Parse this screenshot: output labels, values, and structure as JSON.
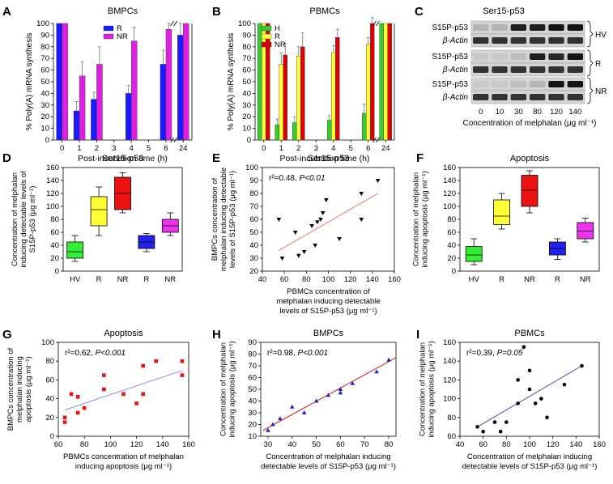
{
  "chart_data": [
    {
      "id": "A",
      "panel_letter": "A",
      "type": "bar",
      "title": "BMPCs",
      "xlabel": "Post-incubation time (h)",
      "ylabel": "% Poly(A) mRNA synthesis",
      "categories": [
        "0",
        "1",
        "2",
        "3",
        "4",
        "5",
        "6",
        "24"
      ],
      "yticks": [
        "0",
        "10",
        "20",
        "30",
        "40",
        "50",
        "60",
        "70",
        "80",
        "90",
        "100"
      ],
      "ylim": [
        0,
        100
      ],
      "series": [
        {
          "name": "R",
          "color": "#1a1aff",
          "values": [
            100,
            25,
            35,
            null,
            40,
            null,
            65,
            90
          ],
          "errors": [
            0,
            8,
            6,
            0,
            7,
            0,
            12,
            10
          ]
        },
        {
          "name": "NR",
          "color": "#e020e0",
          "values": [
            100,
            55,
            65,
            null,
            85,
            null,
            95,
            100
          ],
          "errors": [
            0,
            12,
            15,
            0,
            12,
            0,
            5,
            0
          ]
        }
      ],
      "axis_break_between": [
        "6",
        "24"
      ]
    },
    {
      "id": "B",
      "panel_letter": "B",
      "type": "bar",
      "title": "PBMCs",
      "xlabel": "Post-incubation time (h)",
      "ylabel": "% Poly(A) mRNA synthesis",
      "categories": [
        "0",
        "1",
        "2",
        "3",
        "4",
        "5",
        "6",
        "24"
      ],
      "yticks": [
        "0",
        "10",
        "20",
        "30",
        "40",
        "50",
        "60",
        "70",
        "80",
        "90",
        "100"
      ],
      "ylim": [
        0,
        100
      ],
      "series": [
        {
          "name": "H",
          "color": "#33cc33",
          "values": [
            100,
            13,
            15,
            null,
            17,
            null,
            23,
            100
          ],
          "errors": [
            0,
            5,
            5,
            0,
            4,
            0,
            8,
            0
          ]
        },
        {
          "name": "R",
          "color": "#ffff33",
          "values": [
            100,
            65,
            72,
            null,
            75,
            null,
            82,
            100
          ],
          "errors": [
            0,
            10,
            8,
            0,
            6,
            0,
            6,
            0
          ]
        },
        {
          "name": "NR",
          "color": "#e00000",
          "values": [
            100,
            73,
            80,
            null,
            88,
            null,
            100,
            100
          ],
          "errors": [
            0,
            10,
            12,
            0,
            7,
            0,
            5,
            0
          ]
        }
      ],
      "axis_break_between": [
        "6",
        "24"
      ]
    },
    {
      "id": "C",
      "panel_letter": "C",
      "type": "table",
      "title": "Ser15-p53",
      "xlabel": "Concentration of melphalan (μg ml⁻¹)",
      "lane_labels": [
        "0",
        "10",
        "30",
        "80",
        "120",
        "140"
      ],
      "rows": [
        {
          "label": "S15P-p53",
          "group": "HV",
          "intensity": [
            0.15,
            0.15,
            0.9,
            0.9,
            0.95,
            0.95
          ]
        },
        {
          "label": "β-Actin",
          "group": "HV",
          "intensity": [
            0.8,
            0.8,
            0.8,
            0.8,
            0.8,
            0.8
          ]
        },
        {
          "label": "S15P-p53",
          "group": "R",
          "intensity": [
            0.05,
            0.05,
            0.1,
            0.9,
            0.85,
            0.95
          ]
        },
        {
          "label": "β-Actin",
          "group": "R",
          "intensity": [
            0.8,
            0.8,
            0.8,
            0.8,
            0.8,
            0.8
          ]
        },
        {
          "label": "S15P-p53",
          "group": "NR",
          "intensity": [
            0.05,
            0.05,
            0.1,
            0.15,
            0.95,
            0.95
          ]
        },
        {
          "label": "β-Actin",
          "group": "NR",
          "intensity": [
            0.8,
            0.8,
            0.8,
            0.8,
            0.8,
            0.8
          ]
        }
      ],
      "groups": [
        "HV",
        "R",
        "NR"
      ]
    },
    {
      "id": "D",
      "panel_letter": "D",
      "type": "box",
      "title": "Ser15-p53",
      "ylabel": "Concentration of melphalan inducing detectable levels of S15P-p53 (μg ml⁻¹)",
      "ylabel_lines": [
        "Concentration of melphalan",
        "inducing detectable levels of",
        "S15P-p53 (μg ml⁻¹)"
      ],
      "categories": [
        "HV",
        "R",
        "NR",
        "R",
        "NR"
      ],
      "yticks": [
        "0",
        "20",
        "40",
        "60",
        "80",
        "100",
        "120",
        "140",
        "160"
      ],
      "ylim": [
        0,
        160
      ],
      "boxes": [
        {
          "label": "HV",
          "color": "#33ee33",
          "min": 15,
          "q1": 20,
          "median": 30,
          "q3": 45,
          "max": 55
        },
        {
          "label": "R",
          "color": "#ffff33",
          "min": 55,
          "q1": 70,
          "median": 95,
          "q3": 115,
          "max": 130
        },
        {
          "label": "NR",
          "color": "#ee1111",
          "min": 90,
          "q1": 95,
          "median": 120,
          "q3": 145,
          "max": 152
        },
        {
          "label": "R",
          "color": "#2222ee",
          "min": 30,
          "q1": 35,
          "median": 45,
          "q3": 55,
          "max": 58
        },
        {
          "label": "NR",
          "color": "#ee33ee",
          "min": 55,
          "q1": 60,
          "median": 70,
          "q3": 80,
          "max": 90
        }
      ]
    },
    {
      "id": "E",
      "panel_letter": "E",
      "type": "scatter",
      "title": "Ser15-p53",
      "annotation": {
        "r2": "r²=0.48, ",
        "p": "P<0.01"
      },
      "xlabel": "PBMCs concentration of melphalan inducing detectable levels of S15P-p53 (μg ml⁻¹)",
      "xlabel_lines": [
        "PBMCs concentration of",
        "melphalan inducing detectable",
        "levels of S15P-p53 (μg ml⁻¹)"
      ],
      "ylabel": "BMPCs concentration of melphalan inducing detectable levels of S15P-p53 (μg ml⁻¹)",
      "ylabel_lines": [
        "BMPCs concentration of",
        "melphalan inducing detectable",
        "levels of S15P-p53 (μg ml⁻¹)"
      ],
      "xticks": [
        "40",
        "60",
        "80",
        "100",
        "120",
        "140",
        "160"
      ],
      "yticks": [
        "20",
        "30",
        "40",
        "50",
        "60",
        "70",
        "80",
        "90",
        "100"
      ],
      "xlim": [
        40,
        160
      ],
      "ylim": [
        20,
        100
      ],
      "marker": "triangle-down",
      "marker_color": "#000000",
      "line_color": "#ee7766",
      "points": [
        [
          55,
          60
        ],
        [
          58,
          30
        ],
        [
          70,
          50
        ],
        [
          73,
          32
        ],
        [
          78,
          35
        ],
        [
          85,
          55
        ],
        [
          88,
          40
        ],
        [
          90,
          58
        ],
        [
          93,
          60
        ],
        [
          95,
          65
        ],
        [
          98,
          75
        ],
        [
          110,
          45
        ],
        [
          130,
          80
        ],
        [
          130,
          60
        ],
        [
          145,
          90
        ]
      ],
      "fit": [
        [
          55,
          36
        ],
        [
          145,
          80
        ]
      ]
    },
    {
      "id": "F",
      "panel_letter": "F",
      "type": "box",
      "title": "Apoptosis",
      "ylabel": "Concentration of melphalan inducing apoptosis (μg ml⁻¹)",
      "ylabel_lines": [
        "Concentration of melphalan",
        "inducing apoptosis (μg ml⁻¹)"
      ],
      "categories": [
        "HV",
        "R",
        "NR",
        "R",
        "NR"
      ],
      "yticks": [
        "0",
        "20",
        "40",
        "60",
        "80",
        "100",
        "120",
        "140",
        "160"
      ],
      "ylim": [
        0,
        160
      ],
      "boxes": [
        {
          "label": "HV",
          "color": "#33ee33",
          "min": 10,
          "q1": 15,
          "median": 25,
          "q3": 38,
          "max": 50
        },
        {
          "label": "R",
          "color": "#ffff33",
          "min": 65,
          "q1": 72,
          "median": 85,
          "q3": 110,
          "max": 120
        },
        {
          "label": "NR",
          "color": "#ee1111",
          "min": 90,
          "q1": 100,
          "median": 125,
          "q3": 148,
          "max": 155
        },
        {
          "label": "R",
          "color": "#2222ee",
          "min": 18,
          "q1": 25,
          "median": 35,
          "q3": 45,
          "max": 50
        },
        {
          "label": "NR",
          "color": "#ee33ee",
          "min": 45,
          "q1": 50,
          "median": 62,
          "q3": 75,
          "max": 82
        }
      ]
    },
    {
      "id": "G",
      "panel_letter": "G",
      "type": "scatter",
      "title": "Apoptosis",
      "annotation": {
        "r2": "r²=0.62, ",
        "p": "P<0.001"
      },
      "xlabel": "PBMCs concentration of melphalan inducing apoptosis (μg ml⁻¹)",
      "xlabel_lines": [
        "PBMCs concentration of melphalan",
        "inducing apoptosis (μg ml⁻¹)"
      ],
      "ylabel": "BMPCs concentration of melphalan inducing apoptosis (μg ml⁻¹)",
      "ylabel_lines": [
        "BMPCs concentration of",
        "melphalan inducing",
        "apoptosis (μg ml⁻¹)"
      ],
      "xticks": [
        "60",
        "80",
        "100",
        "120",
        "140",
        "160"
      ],
      "yticks": [
        "0",
        "20",
        "40",
        "60",
        "80",
        "100"
      ],
      "xlim": [
        60,
        160
      ],
      "ylim": [
        0,
        100
      ],
      "marker": "square",
      "marker_color": "#ee1111",
      "line_color": "#8888ee",
      "points": [
        [
          65,
          20
        ],
        [
          65,
          15
        ],
        [
          70,
          45
        ],
        [
          75,
          25
        ],
        [
          75,
          42
        ],
        [
          80,
          30
        ],
        [
          95,
          65
        ],
        [
          95,
          50
        ],
        [
          110,
          45
        ],
        [
          120,
          35
        ],
        [
          125,
          75
        ],
        [
          125,
          45
        ],
        [
          135,
          80
        ],
        [
          155,
          80
        ],
        [
          155,
          65
        ]
      ],
      "fit": [
        [
          65,
          28
        ],
        [
          155,
          70
        ]
      ]
    },
    {
      "id": "H",
      "panel_letter": "H",
      "type": "scatter",
      "title": "BMPCs",
      "annotation": {
        "r2": "r²=0.98, ",
        "p": "P<0.001"
      },
      "xlabel": "Concentration of melphalan inducing detectable levels of S15P-p53 (μg ml⁻¹)",
      "xlabel_lines": [
        "Concentration of melphalan inducing",
        "detectable levels of S15P-p53 (μg ml⁻¹)"
      ],
      "ylabel": "Concentration of melphalan inducing apoptosis (μg ml⁻¹)",
      "ylabel_lines": [
        "Concentration of melphalan",
        "inducing apoptosis (μg ml⁻¹)"
      ],
      "xticks": [
        "30",
        "40",
        "50",
        "60",
        "70",
        "80"
      ],
      "yticks": [
        "10",
        "20",
        "30",
        "40",
        "50",
        "60",
        "70",
        "80",
        "90"
      ],
      "xlim": [
        27,
        83
      ],
      "ylim": [
        10,
        90
      ],
      "marker": "triangle-up",
      "marker_color": "#2222cc",
      "line_color": "#ee1111",
      "points": [
        [
          30,
          15
        ],
        [
          32,
          20
        ],
        [
          35,
          25
        ],
        [
          40,
          35
        ],
        [
          45,
          30
        ],
        [
          50,
          40
        ],
        [
          55,
          45
        ],
        [
          60,
          47
        ],
        [
          60,
          50
        ],
        [
          65,
          55
        ],
        [
          75,
          65
        ],
        [
          80,
          75
        ]
      ],
      "fit": [
        [
          28,
          15
        ],
        [
          83,
          77
        ]
      ]
    },
    {
      "id": "I",
      "panel_letter": "I",
      "type": "scatter",
      "title": "PBMCs",
      "annotation": {
        "r2": "r²=0.39, ",
        "p": "P=0.05"
      },
      "xlabel": "Concentration of melphalan inducing detectable levels of S15P-p53 (μg ml⁻¹)",
      "xlabel_lines": [
        "Concentration of melphalan inducing",
        "detectable levels of S15P-p53 (μg ml⁻¹)"
      ],
      "ylabel": "Concentration of melphalan inducing apoptosis (μg ml⁻¹)",
      "ylabel_lines": [
        "Concentration of melphalan",
        "inducing apoptosis (μg ml⁻¹)"
      ],
      "xticks": [
        "40",
        "60",
        "80",
        "100",
        "120",
        "140",
        "160"
      ],
      "yticks": [
        "60",
        "80",
        "100",
        "120",
        "140",
        "160"
      ],
      "xlim": [
        40,
        160
      ],
      "ylim": [
        60,
        160
      ],
      "marker": "circle",
      "marker_color": "#000000",
      "line_color": "#4444cc",
      "points": [
        [
          55,
          70
        ],
        [
          60,
          65
        ],
        [
          70,
          75
        ],
        [
          75,
          65
        ],
        [
          80,
          75
        ],
        [
          90,
          95
        ],
        [
          90,
          120
        ],
        [
          95,
          155
        ],
        [
          100,
          130
        ],
        [
          100,
          110
        ],
        [
          105,
          95
        ],
        [
          110,
          100
        ],
        [
          115,
          80
        ],
        [
          130,
          115
        ],
        [
          145,
          135
        ]
      ],
      "fit": [
        [
          55,
          70
        ],
        [
          145,
          135
        ]
      ]
    }
  ]
}
